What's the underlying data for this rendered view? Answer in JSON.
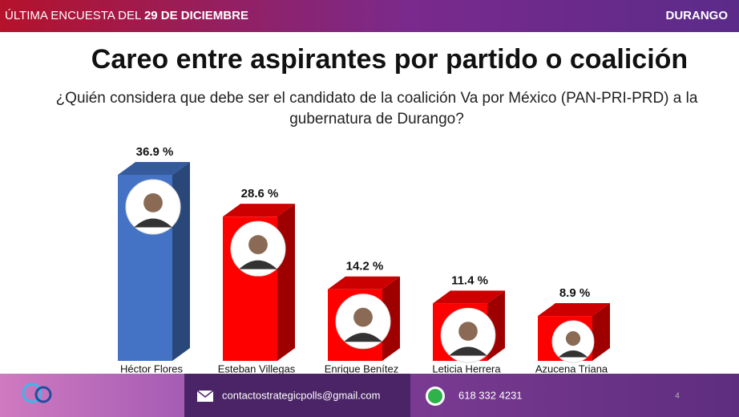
{
  "header": {
    "lead": "ÚLTIMA ENCUESTA DEL",
    "date": "29 DE DICIEMBRE",
    "region": "DURANGO"
  },
  "chart_data": {
    "type": "bar3d",
    "title": "Careo entre aspirantes por partido o coalición",
    "subtitle": "¿Quién considera que debe ser el candidato de la coalición Va por México (PAN-PRI-PRD) a la gubernatura de Durango?",
    "categories": [
      "Héctor Flores",
      "Esteban Villegas",
      "Enrique Benítez",
      "Leticia Herrera",
      "Azucena Triana"
    ],
    "values": [
      36.9,
      28.6,
      14.2,
      11.4,
      8.9
    ],
    "value_labels": [
      "36.9 %",
      "28.6 %",
      "14.2 %",
      "11.4 %",
      "8.9 %"
    ],
    "colors": [
      "#4472c4",
      "#ff0000",
      "#ff0000",
      "#ff0000",
      "#ff0000"
    ]
  },
  "footer": {
    "email": "contactostrategicpolls@gmail.com",
    "phone": "618 332 4231",
    "page": "4"
  }
}
